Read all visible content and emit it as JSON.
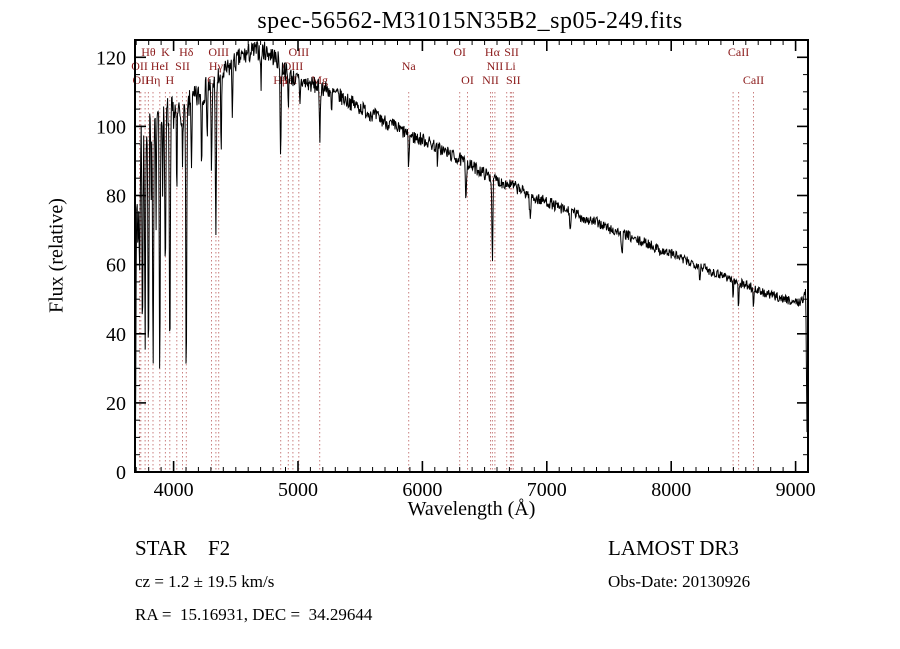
{
  "title": "spec-56562-M31015N35B2_sp05-249.fits",
  "chart_data": {
    "type": "line",
    "title": "spec-56562-M31015N35B2_sp05-249.fits",
    "xlabel": "Wavelength (Å)",
    "ylabel": "Flux (relative)",
    "xlim": [
      3690,
      9100
    ],
    "ylim": [
      0,
      125
    ],
    "x_ticks": [
      4000,
      5000,
      6000,
      7000,
      8000,
      9000
    ],
    "y_ticks": [
      0,
      20,
      40,
      60,
      80,
      100,
      120
    ],
    "x_minor_step": 100,
    "y_minor_step": 5,
    "grid": false,
    "line_color": "#000000",
    "marker_line_color": "#c97f7f",
    "marker_label_color": "#8b1a1a",
    "continuum": [
      [
        3692,
        2
      ],
      [
        3697,
        35
      ],
      [
        3703,
        72
      ],
      [
        3710,
        93
      ],
      [
        3722,
        99
      ],
      [
        3760,
        101
      ],
      [
        3800,
        102
      ],
      [
        3850,
        104
      ],
      [
        3900,
        106
      ],
      [
        3950,
        104
      ],
      [
        4000,
        104
      ],
      [
        4060,
        105
      ],
      [
        4120,
        106
      ],
      [
        4180,
        108
      ],
      [
        4240,
        110
      ],
      [
        4300,
        112
      ],
      [
        4360,
        114
      ],
      [
        4420,
        116
      ],
      [
        4480,
        118
      ],
      [
        4540,
        120
      ],
      [
        4600,
        121
      ],
      [
        4660,
        122
      ],
      [
        4720,
        122
      ],
      [
        4780,
        121
      ],
      [
        4840,
        119
      ],
      [
        4900,
        116
      ],
      [
        4960,
        114
      ],
      [
        5020,
        113
      ],
      [
        5120,
        112
      ],
      [
        5220,
        111
      ],
      [
        5320,
        109
      ],
      [
        5420,
        107
      ],
      [
        5520,
        105
      ],
      [
        5620,
        103
      ],
      [
        5720,
        101
      ],
      [
        5820,
        99
      ],
      [
        5920,
        97
      ],
      [
        6020,
        96
      ],
      [
        6120,
        94
      ],
      [
        6220,
        92
      ],
      [
        6320,
        90
      ],
      [
        6420,
        88
      ],
      [
        6520,
        86
      ],
      [
        6620,
        84
      ],
      [
        6720,
        83
      ],
      [
        6820,
        81
      ],
      [
        6920,
        79
      ],
      [
        7020,
        78
      ],
      [
        7120,
        76
      ],
      [
        7220,
        75
      ],
      [
        7320,
        73
      ],
      [
        7420,
        72
      ],
      [
        7520,
        70
      ],
      [
        7620,
        69
      ],
      [
        7720,
        67
      ],
      [
        7820,
        66
      ],
      [
        7920,
        64
      ],
      [
        8020,
        63
      ],
      [
        8120,
        61
      ],
      [
        8220,
        60
      ],
      [
        8320,
        58
      ],
      [
        8420,
        57
      ],
      [
        8520,
        55
      ],
      [
        8620,
        54
      ],
      [
        8720,
        52
      ],
      [
        8820,
        51
      ],
      [
        8920,
        50
      ],
      [
        9020,
        49
      ],
      [
        9060,
        50
      ],
      [
        9082,
        52
      ],
      [
        9088,
        28
      ],
      [
        9094,
        4
      ]
    ],
    "absorption_features": [
      [
        3714,
        30,
        4
      ],
      [
        3727,
        45,
        4
      ],
      [
        3750,
        58,
        4
      ],
      [
        3771,
        65,
        4
      ],
      [
        3798,
        72,
        4
      ],
      [
        3820,
        26,
        3
      ],
      [
        3835,
        78,
        4
      ],
      [
        3860,
        30,
        3
      ],
      [
        3889,
        80,
        4
      ],
      [
        3912,
        24,
        3
      ],
      [
        3934,
        50,
        4
      ],
      [
        3970,
        76,
        4
      ],
      [
        4026,
        28,
        3
      ],
      [
        4072,
        20,
        3
      ],
      [
        4102,
        82,
        4
      ],
      [
        4144,
        18,
        3
      ],
      [
        4226,
        22,
        3
      ],
      [
        4271,
        14,
        3
      ],
      [
        4305,
        26,
        4
      ],
      [
        4340,
        47,
        4
      ],
      [
        4383,
        26,
        3
      ],
      [
        4472,
        14,
        3
      ],
      [
        4703,
        11,
        3
      ],
      [
        4861,
        27,
        4
      ],
      [
        4922,
        10,
        3
      ],
      [
        5015,
        8,
        3
      ],
      [
        5175,
        15,
        4
      ],
      [
        5270,
        8,
        3
      ],
      [
        5890,
        9,
        4
      ],
      [
        6122,
        5,
        3
      ],
      [
        6350,
        10,
        4
      ],
      [
        6563,
        23,
        4
      ],
      [
        6867,
        7,
        5
      ],
      [
        7190,
        5,
        5
      ],
      [
        7605,
        7,
        5
      ],
      [
        8230,
        4,
        4
      ],
      [
        8498,
        5,
        3
      ],
      [
        8542,
        7,
        3
      ],
      [
        8662,
        6,
        3
      ]
    ],
    "noise": {
      "seed": 7,
      "amplitude": [
        [
          3692,
          6
        ],
        [
          4400,
          3.2
        ],
        [
          5200,
          2.4
        ],
        [
          6500,
          1.8
        ],
        [
          7800,
          1.5
        ],
        [
          9100,
          1.3
        ]
      ]
    },
    "line_markers": [
      {
        "wavelength": 3798,
        "label": "Hθ",
        "row": 1
      },
      {
        "wavelength": 3934,
        "label": "K",
        "row": 1
      },
      {
        "wavelength": 4102,
        "label": "Hδ",
        "row": 1
      },
      {
        "wavelength": 4363,
        "label": "OIII",
        "row": 1
      },
      {
        "wavelength": 5007,
        "label": "OIII",
        "row": 1
      },
      {
        "wavelength": 6300,
        "label": "OI",
        "row": 1
      },
      {
        "wavelength": 6563,
        "label": "Hα",
        "row": 1
      },
      {
        "wavelength": 6717,
        "label": "SII",
        "row": 1
      },
      {
        "wavelength": 8542,
        "label": "CaII",
        "row": 1
      },
      {
        "wavelength": 3727,
        "label": "OII",
        "row": 2
      },
      {
        "wavelength": 3889,
        "label": "HeI",
        "row": 2
      },
      {
        "wavelength": 4072,
        "label": "SII",
        "row": 2
      },
      {
        "wavelength": 4340,
        "label": "Hγ",
        "row": 2
      },
      {
        "wavelength": 4959,
        "label": "OIII",
        "row": 2
      },
      {
        "wavelength": 5890,
        "label": "Na",
        "row": 2
      },
      {
        "wavelength": 6583,
        "label": "NII",
        "row": 2
      },
      {
        "wavelength": 6708,
        "label": "Li",
        "row": 2
      },
      {
        "wavelength": 3737,
        "label": "OII",
        "row": 3
      },
      {
        "wavelength": 3835,
        "label": "Hη",
        "row": 3
      },
      {
        "wavelength": 3970,
        "label": "H",
        "row": 3
      },
      {
        "wavelength": 4305,
        "label": "G",
        "row": 3
      },
      {
        "wavelength": 4861,
        "label": "Hβ",
        "row": 3
      },
      {
        "wavelength": 4922,
        "label": "HeI",
        "row": 3
      },
      {
        "wavelength": 5175,
        "label": "Mg",
        "row": 3
      },
      {
        "wavelength": 6363,
        "label": "OI",
        "row": 3
      },
      {
        "wavelength": 6548,
        "label": "NII",
        "row": 3
      },
      {
        "wavelength": 6731,
        "label": "SII",
        "row": 3
      },
      {
        "wavelength": 8662,
        "label": "CaII",
        "row": 3
      }
    ],
    "extra_marker_lines": [
      3771,
      4026,
      6678,
      8498
    ]
  },
  "footer": {
    "class_label": "STAR    F2",
    "survey": "LAMOST DR3",
    "cz": "cz = 1.2 ± 19.5 km/s",
    "obs_date": "Obs-Date: 20130926",
    "coords": "RA =  15.16931, DEC =  34.29644"
  }
}
